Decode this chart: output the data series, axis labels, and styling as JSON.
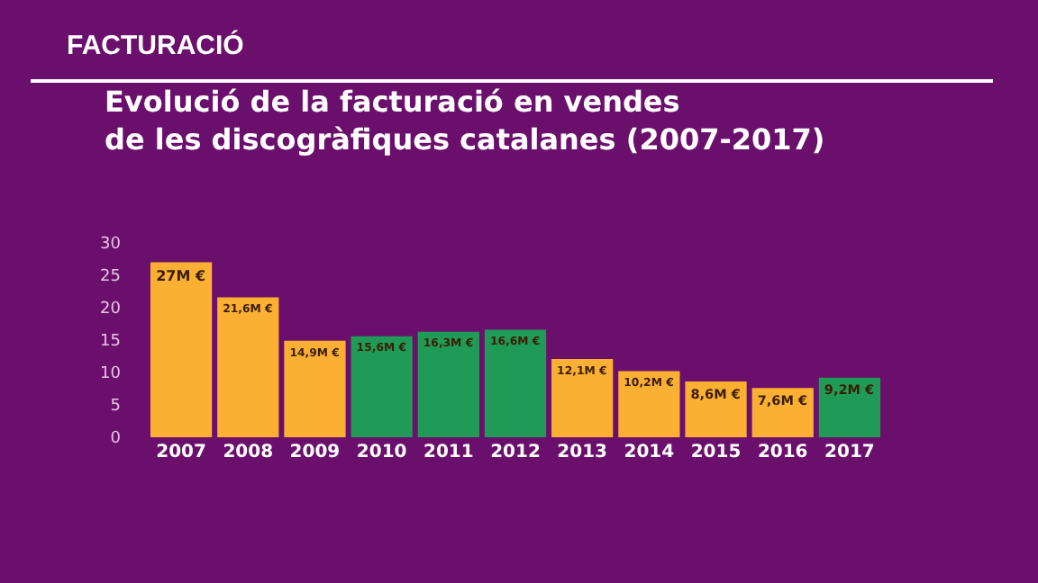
{
  "chart_data": {
    "type": "bar",
    "title": "Evolució de la facturació en vendes de les discogràfiques catalanes (2007-2017)",
    "annotations": [
      "FACTURACIÓ"
    ],
    "categories": [
      "2007",
      "2008",
      "2009",
      "2010",
      "2011",
      "2012",
      "2013",
      "2014",
      "2015",
      "2016",
      "2017"
    ],
    "values": [
      27,
      21.6,
      14.9,
      15.6,
      16.3,
      16.6,
      12.1,
      10.2,
      8.6,
      7.6,
      9.2
    ],
    "value_labels": [
      "27M €",
      "21,6M €",
      "14,9M €",
      "15,6M €",
      "16,3M €",
      "16,6M €",
      "12,1M €",
      "10,2M €",
      "8,6M €",
      "7,6M €",
      "9,2M €"
    ],
    "colors": [
      "#fbb034",
      "#fbb034",
      "#fbb034",
      "#1f9b57",
      "#1f9b57",
      "#1f9b57",
      "#fbb034",
      "#fbb034",
      "#fbb034",
      "#fbb034",
      "#1f9b57"
    ],
    "ylim": [
      0,
      30
    ],
    "yticks": [
      0,
      5,
      10,
      15,
      20,
      25,
      30
    ]
  }
}
